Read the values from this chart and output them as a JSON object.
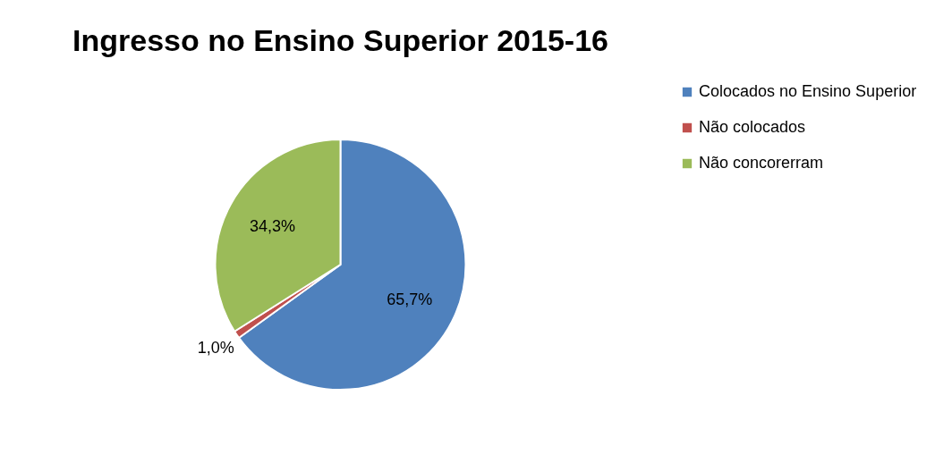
{
  "chart_data": {
    "type": "pie",
    "title": "Ingresso no Ensino Superior 2015-16",
    "categories": [
      "Colocados no Ensino Superior",
      "Não colocados",
      "Não concorerram"
    ],
    "values": [
      65.7,
      1.0,
      34.3
    ],
    "colors": [
      "#4f81bd",
      "#c0504d",
      "#9bbb59"
    ],
    "value_labels": [
      "65,7%",
      "1,0%",
      "34,3%"
    ],
    "legend": "right"
  }
}
